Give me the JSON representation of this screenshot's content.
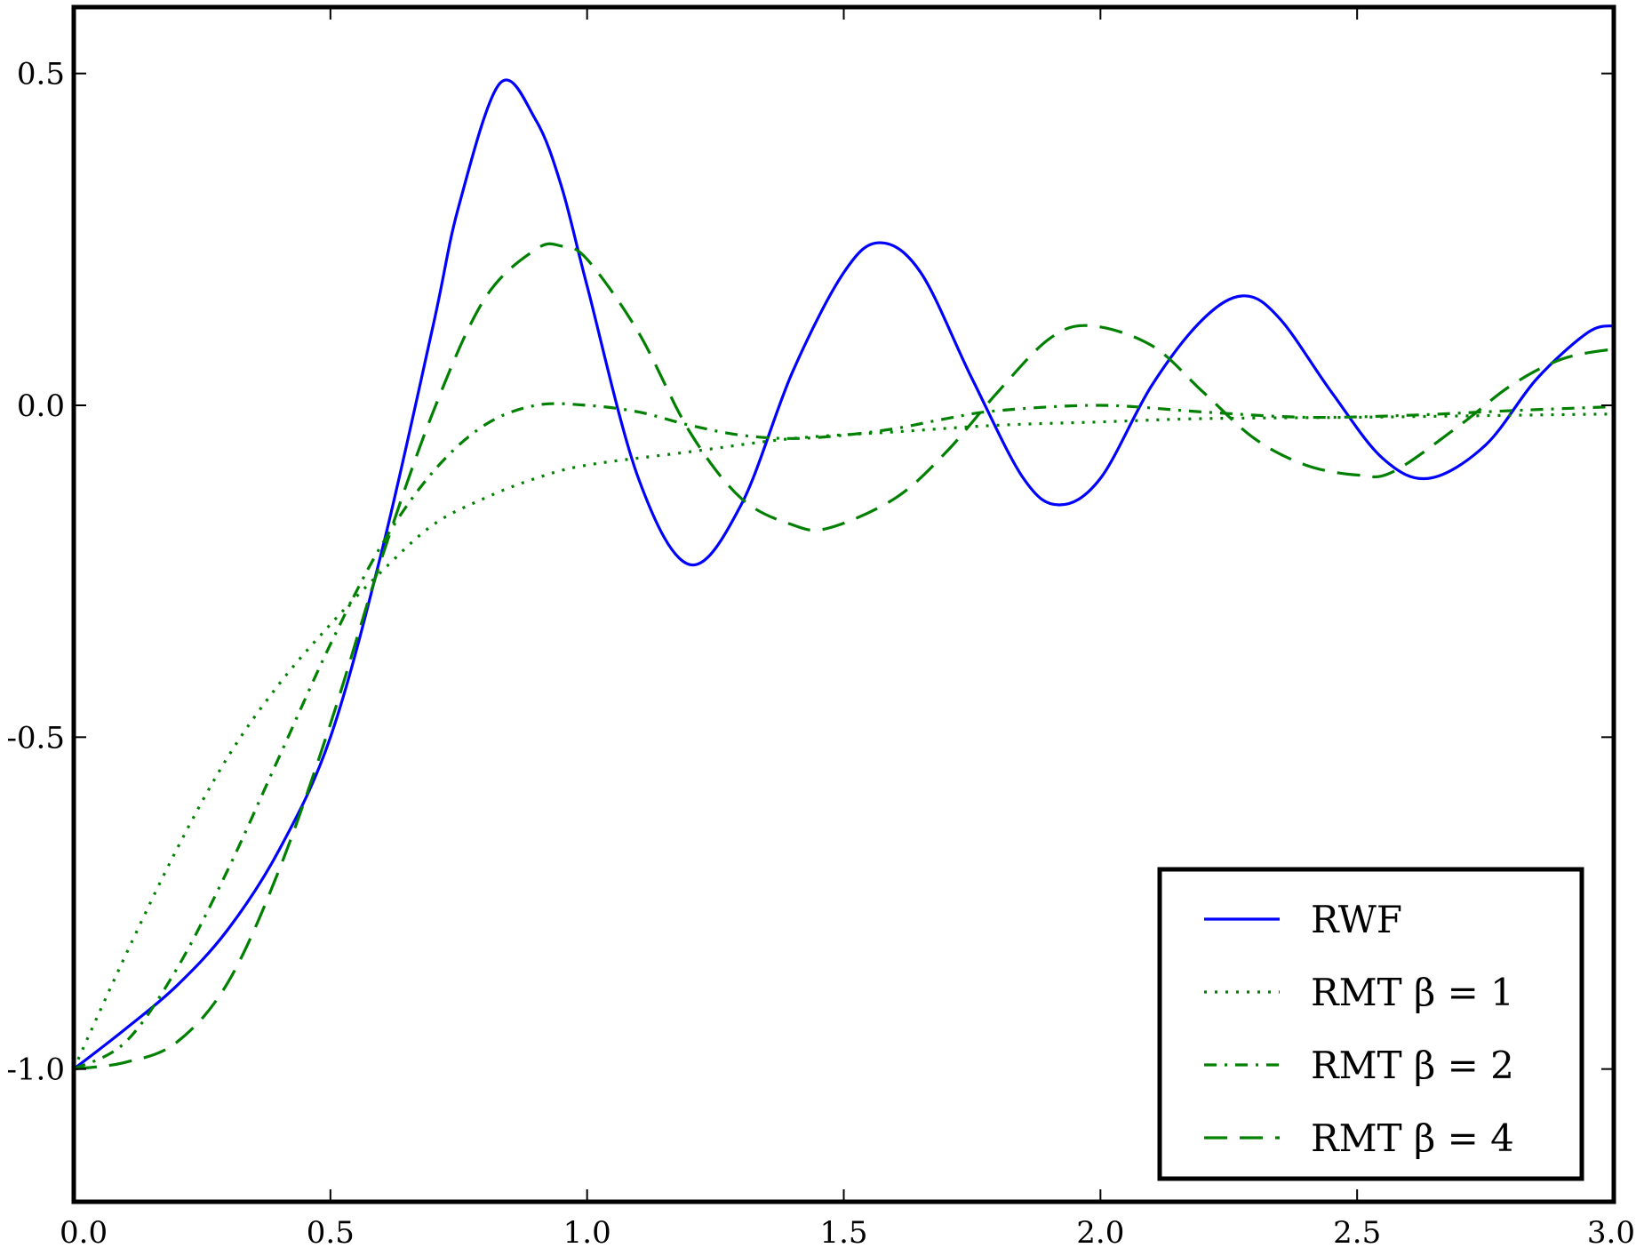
{
  "chart_data": {
    "type": "line",
    "title": "",
    "xlabel": "",
    "ylabel": "",
    "xlim": [
      0.0,
      3.0
    ],
    "ylim": [
      -1.2,
      0.6
    ],
    "xticks": [
      "0.0",
      "0.5",
      "1.0",
      "1.5",
      "2.0",
      "2.5",
      "3.0"
    ],
    "yticks": [
      "0.5",
      "0.0",
      "-0.5",
      "-1.0"
    ],
    "grid": false,
    "legend": {
      "position": "lower-right"
    },
    "series": [
      {
        "name": "RWF",
        "color": "#0000ff",
        "style": "solid",
        "x": [
          0.0,
          0.1,
          0.2,
          0.3,
          0.4,
          0.5,
          0.6,
          0.7,
          0.75,
          0.83,
          0.9,
          0.95,
          1.0,
          1.1,
          1.2,
          1.3,
          1.4,
          1.5,
          1.57,
          1.65,
          1.75,
          1.85,
          1.92,
          2.0,
          2.1,
          2.2,
          2.28,
          2.35,
          2.45,
          2.55,
          2.64,
          2.75,
          2.85,
          2.95,
          3.0
        ],
        "y": [
          -1.0,
          -0.94,
          -0.875,
          -0.79,
          -0.67,
          -0.5,
          -0.22,
          0.12,
          0.3,
          0.485,
          0.43,
          0.33,
          0.18,
          -0.11,
          -0.24,
          -0.15,
          0.05,
          0.2,
          0.245,
          0.2,
          0.04,
          -0.11,
          -0.15,
          -0.11,
          0.03,
          0.13,
          0.165,
          0.13,
          0.02,
          -0.08,
          -0.11,
          -0.06,
          0.04,
          0.11,
          0.12
        ]
      },
      {
        "name": "RMT β = 1",
        "color": "#008000",
        "style": "dotted",
        "x": [
          0.0,
          0.1,
          0.2,
          0.3,
          0.4,
          0.5,
          0.6,
          0.7,
          0.8,
          0.9,
          1.0,
          1.2,
          1.4,
          1.6,
          1.8,
          2.0,
          2.2,
          2.5,
          2.8,
          3.0
        ],
        "y": [
          -1.0,
          -0.83,
          -0.67,
          -0.53,
          -0.42,
          -0.33,
          -0.25,
          -0.18,
          -0.14,
          -0.11,
          -0.09,
          -0.07,
          -0.05,
          -0.04,
          -0.03,
          -0.025,
          -0.02,
          -0.018,
          -0.015,
          -0.013
        ]
      },
      {
        "name": "RMT β = 2",
        "color": "#008000",
        "style": "dashdot",
        "x": [
          0.0,
          0.1,
          0.2,
          0.3,
          0.4,
          0.5,
          0.6,
          0.7,
          0.8,
          0.9,
          1.0,
          1.1,
          1.2,
          1.3,
          1.4,
          1.5,
          1.6,
          1.7,
          1.8,
          2.0,
          2.2,
          2.4,
          2.6,
          2.8,
          3.0
        ],
        "y": [
          -1.0,
          -0.96,
          -0.85,
          -0.7,
          -0.53,
          -0.36,
          -0.21,
          -0.1,
          -0.03,
          0.0,
          0.0,
          -0.01,
          -0.03,
          -0.045,
          -0.05,
          -0.045,
          -0.035,
          -0.02,
          -0.008,
          0.0,
          -0.01,
          -0.018,
          -0.015,
          -0.008,
          -0.002
        ]
      },
      {
        "name": "RMT β = 4",
        "color": "#008000",
        "style": "dashed",
        "x": [
          0.0,
          0.1,
          0.2,
          0.3,
          0.4,
          0.5,
          0.6,
          0.7,
          0.8,
          0.9,
          0.95,
          1.0,
          1.1,
          1.2,
          1.3,
          1.4,
          1.47,
          1.6,
          1.7,
          1.8,
          1.9,
          1.98,
          2.1,
          2.2,
          2.3,
          2.4,
          2.5,
          2.57,
          2.7,
          2.8,
          2.9,
          3.0
        ],
        "y": [
          -1.0,
          -0.99,
          -0.96,
          -0.87,
          -0.7,
          -0.48,
          -0.23,
          -0.01,
          0.16,
          0.235,
          0.24,
          0.22,
          0.11,
          -0.04,
          -0.14,
          -0.18,
          -0.185,
          -0.14,
          -0.07,
          0.02,
          0.1,
          0.12,
          0.09,
          0.02,
          -0.05,
          -0.09,
          -0.105,
          -0.1,
          -0.03,
          0.03,
          0.07,
          0.085
        ]
      }
    ]
  }
}
